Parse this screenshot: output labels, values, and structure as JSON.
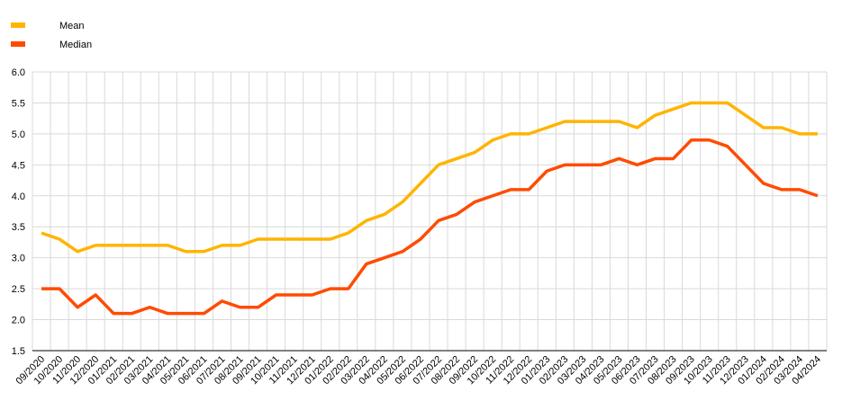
{
  "chart_data": {
    "type": "line",
    "categories": [
      "09/2020",
      "10/2020",
      "11/2020",
      "12/2020",
      "01/2021",
      "02/2021",
      "03/2021",
      "04/2021",
      "05/2021",
      "06/2021",
      "07/2021",
      "08/2021",
      "09/2021",
      "10/2021",
      "11/2021",
      "12/2021",
      "01/2022",
      "02/2022",
      "03/2022",
      "04/2022",
      "05/2022",
      "06/2022",
      "07/2022",
      "08/2022",
      "09/2022",
      "10/2022",
      "11/2022",
      "12/2022",
      "01/2023",
      "02/2023",
      "03/2023",
      "04/2023",
      "05/2023",
      "06/2023",
      "07/2023",
      "08/2023",
      "09/2023",
      "10/2023",
      "11/2023",
      "12/2023",
      "01/2024",
      "02/2024",
      "03/2024",
      "04/2024"
    ],
    "series": [
      {
        "name": "Mean",
        "color": "#ffb400",
        "values": [
          3.4,
          3.3,
          3.1,
          3.2,
          3.2,
          3.2,
          3.2,
          3.2,
          3.1,
          3.1,
          3.2,
          3.2,
          3.3,
          3.3,
          3.3,
          3.3,
          3.3,
          3.4,
          3.6,
          3.7,
          3.9,
          4.2,
          4.5,
          4.6,
          4.7,
          4.9,
          5.0,
          5.0,
          5.1,
          5.2,
          5.2,
          5.2,
          5.2,
          5.1,
          5.3,
          5.4,
          5.5,
          5.5,
          5.5,
          5.3,
          5.1,
          5.1,
          5.0,
          5.0
        ]
      },
      {
        "name": "Median",
        "color": "#ff4b00",
        "values": [
          2.5,
          2.5,
          2.2,
          2.4,
          2.1,
          2.1,
          2.2,
          2.1,
          2.1,
          2.1,
          2.3,
          2.2,
          2.2,
          2.4,
          2.4,
          2.4,
          2.5,
          2.5,
          2.9,
          3.0,
          3.1,
          3.3,
          3.6,
          3.7,
          3.9,
          4.0,
          4.1,
          4.1,
          4.4,
          4.5,
          4.5,
          4.5,
          4.6,
          4.5,
          4.6,
          4.6,
          4.9,
          4.9,
          4.8,
          4.5,
          4.2,
          4.1,
          4.1,
          4.0
        ]
      }
    ],
    "ylim": [
      1.5,
      6.0
    ],
    "yticks": [
      {
        "value": 1.5,
        "label": "1.5"
      },
      {
        "value": 2,
        "label": "2.0"
      },
      {
        "value": 2.5,
        "label": "2.5"
      },
      {
        "value": 3,
        "label": "3.0"
      },
      {
        "value": 3.5,
        "label": "3.5"
      },
      {
        "value": 4,
        "label": "4.0"
      },
      {
        "value": 4.5,
        "label": "4.5"
      },
      {
        "value": 5,
        "label": "5.0"
      },
      {
        "value": 5.5,
        "label": "5.5"
      },
      {
        "value": 6,
        "label": "6.0"
      }
    ],
    "grid": true,
    "legend": "top-left"
  }
}
